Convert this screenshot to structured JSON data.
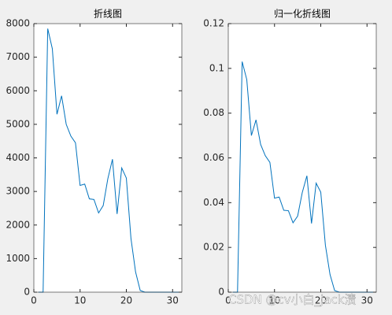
{
  "chart_data": [
    {
      "type": "line",
      "title": "折线图",
      "x": [
        1,
        2,
        3,
        4,
        5,
        6,
        7,
        8,
        9,
        10,
        11,
        12,
        13,
        14,
        15,
        16,
        17,
        18,
        19,
        20,
        21,
        22,
        23,
        24,
        25,
        26,
        27,
        28,
        29,
        30,
        31,
        32
      ],
      "series": [
        {
          "color": "#0072bd",
          "values": [
            0,
            0,
            7850,
            7250,
            5300,
            5850,
            5000,
            4650,
            4450,
            3180,
            3220,
            2780,
            2760,
            2360,
            2580,
            3380,
            3960,
            2330,
            3700,
            3400,
            1600,
            600,
            50,
            0,
            0,
            0,
            0,
            0,
            0,
            0,
            0,
            0
          ]
        }
      ],
      "xlim": [
        0,
        32
      ],
      "xticks": [
        0,
        10,
        20,
        30
      ],
      "ylim": [
        0,
        8000
      ],
      "yticks": [
        0,
        1000,
        2000,
        3000,
        4000,
        5000,
        6000,
        7000,
        8000
      ]
    },
    {
      "type": "line",
      "title": "归一化折线图",
      "x": [
        1,
        2,
        3,
        4,
        5,
        6,
        7,
        8,
        9,
        10,
        11,
        12,
        13,
        14,
        15,
        16,
        17,
        18,
        19,
        20,
        21,
        22,
        23,
        24,
        25,
        26,
        27,
        28,
        29,
        30,
        31,
        32
      ],
      "series": [
        {
          "color": "#0072bd",
          "values": [
            0,
            0,
            0.103,
            0.095,
            0.07,
            0.077,
            0.066,
            0.061,
            0.058,
            0.042,
            0.0425,
            0.0366,
            0.0364,
            0.031,
            0.034,
            0.0445,
            0.052,
            0.0307,
            0.0487,
            0.0447,
            0.021,
            0.0079,
            0.0007,
            0,
            0,
            0,
            0,
            0,
            0,
            0,
            0,
            0
          ]
        }
      ],
      "xlim": [
        0,
        32
      ],
      "xticks": [
        0,
        10,
        20,
        30
      ],
      "ylim": [
        0,
        0.12
      ],
      "yticks": [
        0,
        0.02,
        0.04,
        0.06,
        0.08,
        0.1,
        0.12
      ]
    }
  ],
  "watermark": "CSDN @cv小白_jack渍"
}
